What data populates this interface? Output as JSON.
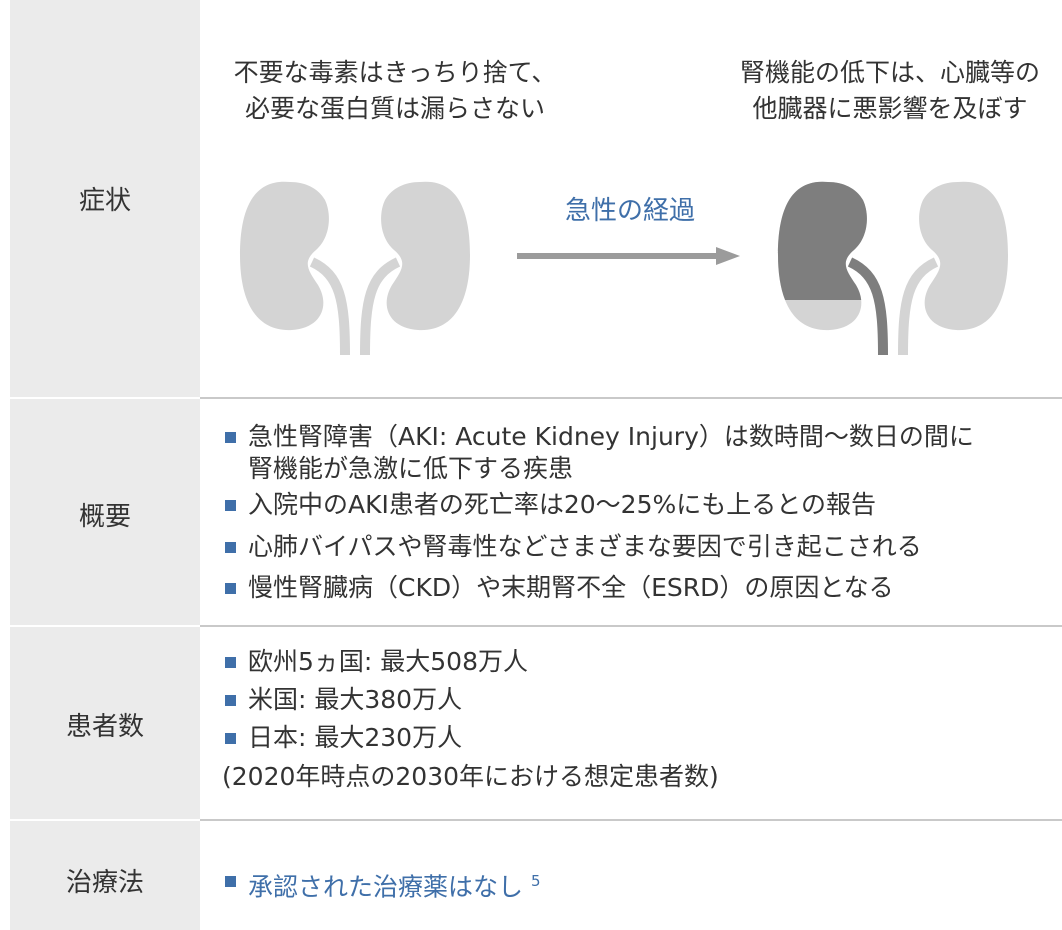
{
  "symptoms": {
    "label": "症状",
    "left_caption": [
      "不要な毒素はきっちり捨て、",
      "必要な蛋白質は漏らさない"
    ],
    "arrow_label": "急性の経過",
    "right_caption": [
      "腎機能の低下は、心臓等の",
      "他臓器に悪影響を及ぼす"
    ]
  },
  "overview": {
    "label": "概要",
    "items": [
      [
        "急性腎障害（AKI: Acute Kidney Injury）は数時間～数日の間に",
        "腎機能が急激に低下する疾患"
      ],
      [
        "入院中のAKI患者の死亡率は20～25%にも上るとの報告"
      ],
      [
        "心肺バイパスや腎毒性などさまざまな要因で引き起こされる"
      ],
      [
        "慢性腎臓病（CKD）や末期腎不全（ESRD）の原因となる"
      ]
    ]
  },
  "patients": {
    "label": "患者数",
    "items": [
      "欧州5ヵ国: 最大508万人",
      "米国: 最大380万人",
      "日本: 最大230万人"
    ],
    "note": "(2020年時点の2030年における想定患者数)"
  },
  "treatment": {
    "label": "治療法",
    "item": "承認された治療薬はなし",
    "footnote": "5"
  }
}
